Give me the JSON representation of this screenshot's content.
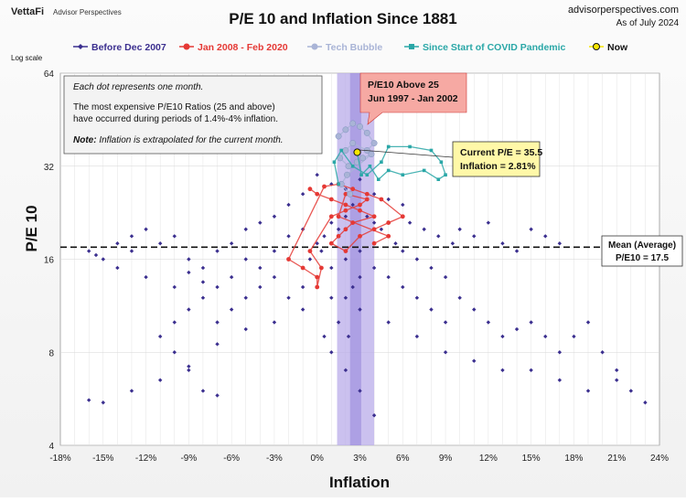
{
  "header": {
    "brand": "VettaFi",
    "brand_sub": "Advisor Perspectives",
    "title": "P/E 10 and Inflation Since 1881",
    "site": "advisorperspectives.com",
    "date": "As of July 2024"
  },
  "legend": [
    {
      "label": "Before Dec 2007",
      "color": "#3b2f8f",
      "marker": "diamond"
    },
    {
      "label": "Jan 2008 - Feb 2020",
      "color": "#e53935",
      "marker": "circle"
    },
    {
      "label": "Tech Bubble",
      "color": "#a9b4d6",
      "marker": "circle"
    },
    {
      "label": "Since Start of COVID Pandemic",
      "color": "#2aa7a7",
      "marker": "square"
    },
    {
      "label": "Now",
      "color": "#f7e600",
      "marker": "circle"
    }
  ],
  "notes": {
    "line1": "Each dot represents one month.",
    "line2": "The most expensive P/E10 Ratios (25 and above)",
    "line3": "have occurred during periods of 1.4%-4% inflation.",
    "note_label": "Note:",
    "note_text": " Inflation is extrapolated for the current month."
  },
  "callouts": {
    "bubble_line1": "P/E10 Above 25",
    "bubble_line2": "Jun 1997 - Jan 2002",
    "current_line1": "Current P/E = 35.5",
    "current_line2": "Inflation = 2.81%",
    "mean_line1": "Mean (Average)",
    "mean_line2": "P/E10 = 17.5"
  },
  "chart_data": {
    "type": "scatter",
    "title": "P/E 10 and Inflation Since 1881",
    "xlabel": "Inflation",
    "ylabel": "P/E 10",
    "y_scale_label": "Log scale",
    "y_scale": "log",
    "xlim": [
      -18,
      24
    ],
    "ylim": [
      4,
      64
    ],
    "x_ticks": [
      "-18%",
      "-15%",
      "-12%",
      "-9%",
      "-6%",
      "-3%",
      "0%",
      "3%",
      "6%",
      "9%",
      "12%",
      "15%",
      "18%",
      "21%",
      "24%"
    ],
    "y_ticks": [
      "4",
      "8",
      "16",
      "32",
      "64"
    ],
    "highlight_band_x": [
      1.4,
      4.0
    ],
    "mean_pe": 17.5,
    "current": {
      "x": 2.81,
      "y": 35.5
    },
    "legend_position": "top",
    "grid": true,
    "series": [
      {
        "name": "Before Dec 2007",
        "points": [
          [
            -16,
            17
          ],
          [
            -15.5,
            16.5
          ],
          [
            -15,
            16
          ],
          [
            -14,
            15
          ],
          [
            -13,
            17
          ],
          [
            -12,
            14
          ],
          [
            -11,
            18
          ],
          [
            -10,
            19
          ],
          [
            -9,
            16
          ],
          [
            -8,
            15
          ],
          [
            -7,
            17
          ],
          [
            -6,
            18
          ],
          [
            -5,
            16
          ],
          [
            -4,
            15
          ],
          [
            -3,
            17
          ],
          [
            -2,
            19
          ],
          [
            -1,
            20
          ],
          [
            0,
            18
          ],
          [
            0.5,
            19
          ],
          [
            1,
            21
          ],
          [
            1.5,
            20
          ],
          [
            2,
            22
          ],
          [
            2.5,
            24
          ],
          [
            3,
            23
          ],
          [
            3.5,
            22
          ],
          [
            4,
            21
          ],
          [
            4.5,
            20
          ],
          [
            5,
            19
          ],
          [
            5.5,
            18
          ],
          [
            6,
            17
          ],
          [
            7,
            16
          ],
          [
            8,
            15
          ],
          [
            9,
            14
          ],
          [
            10,
            12
          ],
          [
            11,
            11
          ],
          [
            12,
            10
          ],
          [
            13,
            9
          ],
          [
            14,
            9.5
          ],
          [
            15,
            10
          ],
          [
            16,
            9
          ],
          [
            17,
            8
          ],
          [
            18,
            9
          ],
          [
            19,
            10
          ],
          [
            20,
            8
          ],
          [
            21,
            7
          ],
          [
            22,
            6
          ],
          [
            23,
            5.5
          ],
          [
            -10,
            10
          ],
          [
            -9,
            11
          ],
          [
            -8,
            12
          ],
          [
            -7,
            10
          ],
          [
            -6,
            11
          ],
          [
            -5,
            12
          ],
          [
            -4,
            13
          ],
          [
            -3,
            14
          ],
          [
            -2,
            12
          ],
          [
            -1,
            13
          ],
          [
            0,
            14
          ],
          [
            1,
            15
          ],
          [
            2,
            16
          ],
          [
            3,
            17
          ],
          [
            4,
            15
          ],
          [
            5,
            14
          ],
          [
            6,
            13
          ],
          [
            7,
            12
          ],
          [
            8,
            11
          ],
          [
            9,
            10
          ],
          [
            -16,
            5.6
          ],
          [
            -15,
            5.5
          ],
          [
            -13,
            6
          ],
          [
            -11,
            6.5
          ],
          [
            -9,
            7.2
          ],
          [
            -7,
            8.5
          ],
          [
            -5,
            9.5
          ],
          [
            -3,
            10
          ],
          [
            -1,
            11
          ],
          [
            1,
            12
          ],
          [
            3,
            11
          ],
          [
            5,
            10
          ],
          [
            7,
            9
          ],
          [
            9,
            8
          ],
          [
            11,
            7.5
          ],
          [
            13,
            7
          ],
          [
            15,
            7
          ],
          [
            17,
            6.5
          ],
          [
            19,
            6
          ],
          [
            21,
            6.5
          ],
          [
            0,
            30
          ],
          [
            1,
            28
          ],
          [
            2,
            27
          ],
          [
            3,
            29
          ],
          [
            4,
            26
          ],
          [
            5,
            25
          ],
          [
            6,
            24
          ],
          [
            -1,
            26
          ],
          [
            -2,
            24
          ],
          [
            -3,
            22
          ],
          [
            -4,
            21
          ],
          [
            -5,
            20
          ],
          [
            10,
            20
          ],
          [
            11,
            19
          ],
          [
            12,
            21
          ],
          [
            13,
            18
          ],
          [
            14,
            17
          ],
          [
            -12,
            20
          ],
          [
            -13,
            19
          ],
          [
            -14,
            18
          ],
          [
            -11,
            9
          ],
          [
            -10,
            8
          ],
          [
            -9,
            7
          ],
          [
            -8,
            6
          ],
          [
            -7,
            5.8
          ],
          [
            0.5,
            9
          ],
          [
            1,
            8
          ],
          [
            2,
            7
          ],
          [
            3,
            6
          ],
          [
            4,
            5
          ],
          [
            16,
            19
          ],
          [
            17,
            18
          ],
          [
            15,
            20
          ],
          [
            2,
            12
          ],
          [
            2.5,
            13
          ],
          [
            3,
            14
          ],
          [
            1.5,
            10
          ],
          [
            2.2,
            9
          ],
          [
            -0.5,
            16
          ],
          [
            0.3,
            17
          ],
          [
            6.5,
            21
          ],
          [
            7.5,
            20
          ],
          [
            8.5,
            19
          ],
          [
            9.5,
            18
          ],
          [
            -6,
            14
          ],
          [
            -7,
            13
          ],
          [
            -8,
            13.5
          ],
          [
            -9,
            14.5
          ],
          [
            -10,
            13
          ]
        ]
      },
      {
        "name": "Jan 2008 - Feb 2020",
        "points": [
          [
            -0.5,
            27
          ],
          [
            0,
            26
          ],
          [
            1,
            25
          ],
          [
            2,
            24
          ],
          [
            3,
            23
          ],
          [
            4,
            22
          ],
          [
            2.5,
            21
          ],
          [
            2,
            20
          ],
          [
            1.5,
            19
          ],
          [
            1,
            18
          ],
          [
            2,
            17
          ],
          [
            3,
            19
          ],
          [
            4,
            20
          ],
          [
            5,
            21
          ],
          [
            6,
            22
          ],
          [
            4.5,
            25
          ],
          [
            3.5,
            26
          ],
          [
            2.5,
            27
          ],
          [
            1.5,
            28
          ],
          [
            0.5,
            27.5
          ],
          [
            -2,
            16
          ],
          [
            -1,
            15
          ],
          [
            0,
            14
          ],
          [
            0,
            13
          ],
          [
            0.3,
            15
          ],
          [
            -0.5,
            17
          ],
          [
            1,
            22
          ],
          [
            2,
            23
          ],
          [
            3,
            24
          ],
          [
            3.5,
            25
          ],
          [
            2,
            26
          ],
          [
            1.5,
            22
          ],
          [
            5,
            19
          ],
          [
            4,
            18
          ]
        ]
      },
      {
        "name": "Tech Bubble",
        "points": [
          [
            1.5,
            40
          ],
          [
            2,
            42
          ],
          [
            2.5,
            44
          ],
          [
            3,
            43
          ],
          [
            3.5,
            41
          ],
          [
            4,
            38
          ],
          [
            3.5,
            36
          ],
          [
            2.5,
            38
          ],
          [
            2,
            36
          ],
          [
            1.6,
            34
          ],
          [
            2.2,
            32
          ],
          [
            2.8,
            33
          ],
          [
            3.2,
            34
          ],
          [
            3.8,
            35
          ],
          [
            2.1,
            30
          ],
          [
            1.7,
            28
          ],
          [
            2.3,
            26
          ]
        ]
      },
      {
        "name": "Since Start of COVID Pandemic",
        "points": [
          [
            1.5,
            28
          ],
          [
            1.2,
            33
          ],
          [
            1.7,
            36
          ],
          [
            2.5,
            32
          ],
          [
            3.5,
            30
          ],
          [
            4.5,
            33
          ],
          [
            5,
            37
          ],
          [
            6.5,
            37
          ],
          [
            8,
            36
          ],
          [
            8.7,
            33
          ],
          [
            9,
            30
          ],
          [
            8.5,
            29
          ],
          [
            7.5,
            31
          ],
          [
            6,
            30
          ],
          [
            5,
            31
          ],
          [
            4.3,
            29
          ],
          [
            3.7,
            32
          ],
          [
            3.1,
            30
          ],
          [
            2.81,
            35.5
          ]
        ]
      }
    ]
  }
}
